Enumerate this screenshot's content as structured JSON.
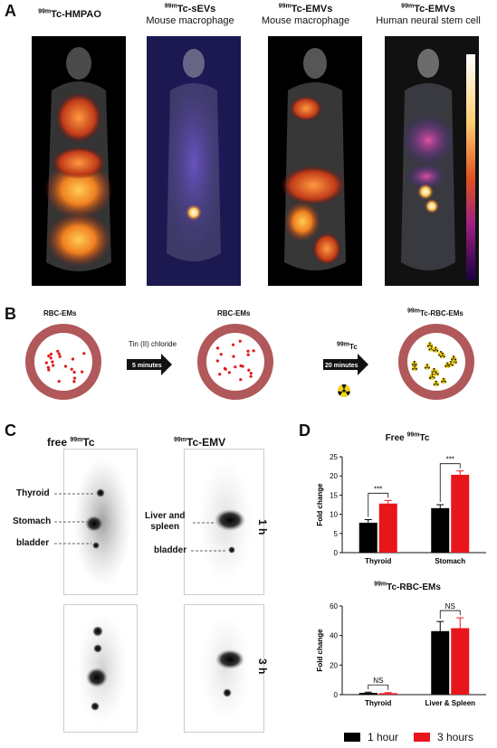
{
  "panel_a": {
    "letter": "A",
    "titles": [
      {
        "iso": "99m",
        "name": "Tc-HMPAO",
        "sub": ""
      },
      {
        "iso": "99m",
        "name": "Tc-sEVs",
        "sub": "Mouse macrophage"
      },
      {
        "iso": "99m",
        "name": "Tc-EMVs",
        "sub": "Mouse macrophage"
      },
      {
        "iso": "99m",
        "name": "Tc-EMVs",
        "sub": "Human neural stem cell"
      }
    ]
  },
  "panel_b": {
    "letter": "B",
    "cell1_label": "RBC-EMs",
    "step1_reagent": "Tin (II) chloride",
    "step1_time": "5 minutes",
    "cell2_label": "RBC-EMs",
    "step2_iso": "99m",
    "step2_reagent": "Tc",
    "step2_time": "20 minutes",
    "cell3_iso": "99m",
    "cell3_label": "Tc-RBC-EMs",
    "radiation_icon": "radiation-icon"
  },
  "panel_c": {
    "letter": "C",
    "col1_prefix": "free ",
    "col1_iso": "99m",
    "col1_name": "Tc",
    "col2_iso": "99m",
    "col2_name": "Tc-EMV",
    "labels_left": [
      "Thyroid",
      "Stomach",
      "bladder"
    ],
    "label_right_1a": "Liver and",
    "label_right_1b": "spleen",
    "label_right_2": "bladder",
    "time_1": "1 h",
    "time_2": "3 h"
  },
  "panel_d": {
    "letter": "D",
    "legend": [
      {
        "label": "1 hour",
        "color": "#000000"
      },
      {
        "label": "3 hours",
        "color": "#e8161b"
      }
    ]
  },
  "chart_data": [
    {
      "type": "bar",
      "title_prefix": "Free ",
      "title_iso": "99m",
      "title_name": "Tc",
      "ylabel": "Fold change",
      "categories": [
        "Thyroid",
        "Stomach"
      ],
      "ylim": [
        0,
        25
      ],
      "yticks": [
        0,
        5,
        10,
        15,
        20,
        25
      ],
      "series": [
        {
          "name": "1 hour",
          "color": "#000000",
          "values": [
            7.8,
            11.6
          ],
          "errors": [
            0.8,
            0.9
          ]
        },
        {
          "name": "3 hours",
          "color": "#e8161b",
          "values": [
            12.8,
            20.3
          ],
          "errors": [
            0.8,
            1.0
          ]
        }
      ],
      "significance": [
        "***",
        "***"
      ]
    },
    {
      "type": "bar",
      "title_prefix": "",
      "title_iso": "99m",
      "title_name": "Tc-RBC-EMs",
      "ylabel": "Fold change",
      "categories": [
        "Thyroid",
        "Liver & Spleen"
      ],
      "ylim": [
        0,
        60
      ],
      "yticks": [
        0,
        20,
        40,
        60
      ],
      "series": [
        {
          "name": "1 hour",
          "color": "#000000",
          "values": [
            1.2,
            43
          ],
          "errors": [
            0.5,
            6.5
          ]
        },
        {
          "name": "3 hours",
          "color": "#e8161b",
          "values": [
            1.0,
            45
          ],
          "errors": [
            0.4,
            7
          ]
        }
      ],
      "significance": [
        "NS",
        "NS"
      ]
    }
  ]
}
